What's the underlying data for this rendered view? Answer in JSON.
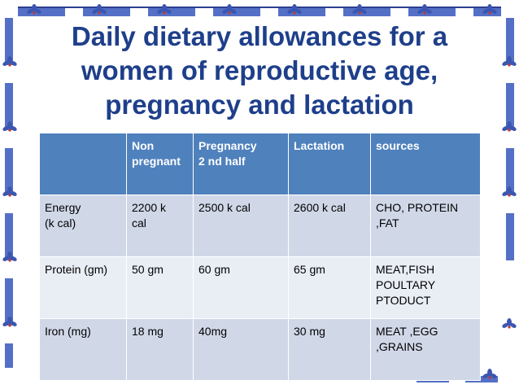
{
  "slide": {
    "title": "Daily dietary allowances for a women of reproductive age, pregnancy and lactation"
  },
  "table": {
    "headers": [
      "",
      "Non\npregnant",
      "Pregnancy\n2 nd half",
      "Lactation",
      "sources"
    ],
    "rows": [
      [
        "Energy\n(k cal)",
        "2200 k\ncal",
        "2500 k cal",
        "2600 k cal",
        "CHO, PROTEIN\n,FAT"
      ],
      [
        "Protein (gm)",
        "50 gm",
        "60 gm",
        "65 gm",
        "MEAT,FISH\nPOULTARY\nPTODUCT"
      ],
      [
        "Iron (mg)",
        "18 mg",
        "40mg",
        "30 mg",
        "MEAT ,EGG\n,GRAINS"
      ]
    ]
  },
  "colors": {
    "title": "#1e3f8a",
    "header_bg": "#4f81bd",
    "row_dark": "#d0d8e8",
    "row_light": "#e9edf4",
    "border_ornament": "#5470c6"
  }
}
